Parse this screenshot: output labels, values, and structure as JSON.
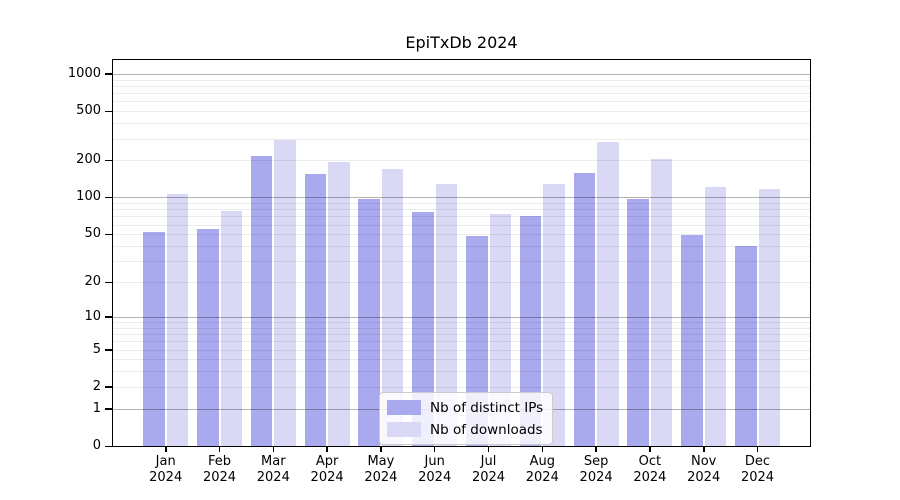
{
  "chart_data": {
    "type": "bar",
    "title": "EpiTxDb 2024",
    "categories": [
      "Jan 2024",
      "Feb 2024",
      "Mar 2024",
      "Apr 2024",
      "May 2024",
      "Jun 2024",
      "Jul 2024",
      "Aug 2024",
      "Sep 2024",
      "Oct 2024",
      "Nov 2024",
      "Dec 2024"
    ],
    "series": [
      {
        "name": "Nb of distinct IPs",
        "color": "#a9a9ee",
        "values": [
          52,
          55,
          215,
          156,
          98,
          76,
          48,
          71,
          158,
          98,
          49,
          40
        ]
      },
      {
        "name": "Nb of downloads",
        "color": "#d9d9f6",
        "values": [
          106,
          78,
          290,
          193,
          170,
          128,
          73,
          128,
          280,
          207,
          121,
          117
        ]
      }
    ],
    "yscale": "log10(1+y)",
    "yticks": [
      0,
      1,
      2,
      5,
      10,
      20,
      50,
      100,
      200,
      500,
      1000
    ],
    "ylim": [
      0,
      1293
    ],
    "grid": "horizontal, minor lines each decade, darker lines at 1/10/100/1000, drawn over bars",
    "legend_position": "inside lower-center",
    "colors": {
      "bar_dark": "#a9a9ee",
      "bar_light": "#d9d9f6",
      "grid_minor": "#ececec",
      "grid_major": "#b3b3b3",
      "axis": "#000000",
      "background": "#ffffff"
    }
  }
}
